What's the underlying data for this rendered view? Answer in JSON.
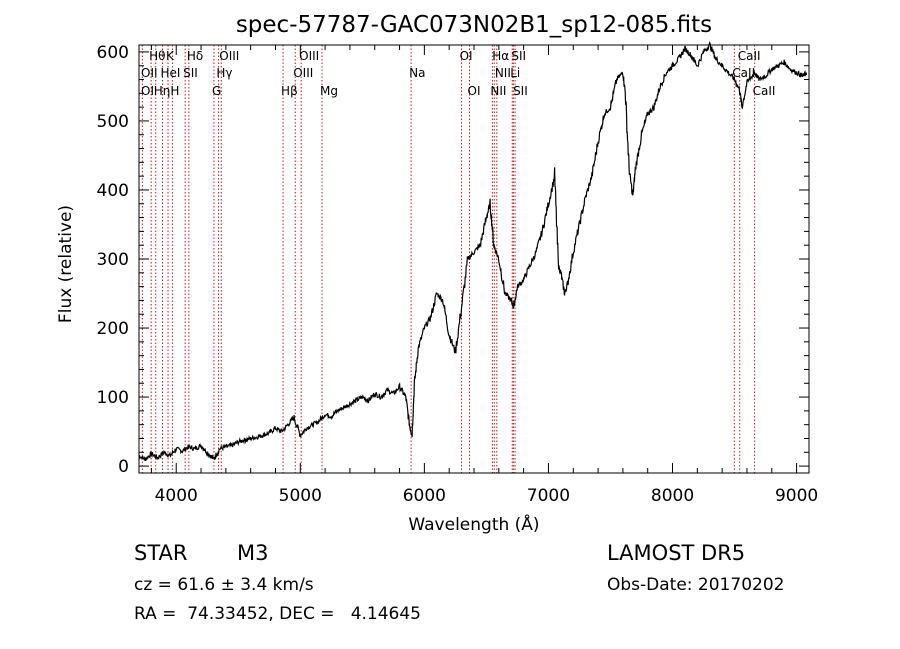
{
  "chart_data": {
    "type": "line",
    "title": "spec-57787-GAC073N02B1_sp12-085.fits",
    "xlabel": "Wavelength (Å)",
    "ylabel": "Flux (relative)",
    "xlim": [
      3700,
      9100
    ],
    "ylim": [
      -10,
      610
    ],
    "xticks": [
      4000,
      5000,
      6000,
      7000,
      8000,
      9000
    ],
    "yticks": [
      0,
      100,
      200,
      300,
      400,
      500,
      600
    ],
    "grid": false,
    "series": [
      {
        "x": [
          3700,
          3750,
          3800,
          3850,
          3900,
          3950,
          4000,
          4050,
          4100,
          4150,
          4200,
          4250,
          4300,
          4350,
          4400,
          4450,
          4500,
          4550,
          4600,
          4650,
          4700,
          4750,
          4800,
          4850,
          4900,
          4950,
          5000,
          5050,
          5100,
          5150,
          5200,
          5250,
          5300,
          5350,
          5400,
          5450,
          5500,
          5550,
          5600,
          5650,
          5700,
          5750,
          5800,
          5850,
          5880,
          5900,
          5920,
          5950,
          6000,
          6050,
          6100,
          6150,
          6200,
          6250,
          6300,
          6350,
          6400,
          6450,
          6500,
          6530,
          6560,
          6600,
          6650,
          6700,
          6720,
          6750,
          6800,
          6850,
          6900,
          6950,
          7000,
          7050,
          7080,
          7100,
          7130,
          7150,
          7200,
          7250,
          7300,
          7350,
          7400,
          7450,
          7500,
          7550,
          7600,
          7620,
          7650,
          7680,
          7700,
          7750,
          7800,
          7850,
          7900,
          7950,
          8000,
          8050,
          8100,
          8150,
          8200,
          8250,
          8300,
          8350,
          8400,
          8450,
          8500,
          8540,
          8560,
          8600,
          8660,
          8700,
          8750,
          8800,
          8850,
          8900,
          8950,
          9000,
          9050,
          9080
        ],
        "y": [
          15,
          10,
          18,
          12,
          20,
          15,
          25,
          22,
          28,
          25,
          30,
          20,
          10,
          25,
          28,
          30,
          35,
          38,
          40,
          42,
          45,
          48,
          55,
          50,
          60,
          70,
          45,
          55,
          60,
          65,
          75,
          72,
          80,
          85,
          90,
          95,
          100,
          95,
          105,
          100,
          110,
          105,
          115,
          100,
          60,
          45,
          120,
          170,
          200,
          215,
          250,
          240,
          190,
          165,
          230,
          300,
          310,
          320,
          360,
          380,
          320,
          300,
          250,
          240,
          230,
          260,
          270,
          290,
          310,
          340,
          380,
          420,
          290,
          280,
          250,
          260,
          310,
          350,
          390,
          420,
          470,
          510,
          520,
          560,
          570,
          540,
          430,
          390,
          430,
          480,
          510,
          520,
          550,
          570,
          580,
          590,
          605,
          595,
          580,
          600,
          610,
          590,
          580,
          570,
          560,
          545,
          520,
          555,
          570,
          560,
          565,
          575,
          580,
          585,
          575,
          570,
          565,
          570
        ]
      }
    ],
    "annotations": [
      {
        "label": "Hθ",
        "x": 3798,
        "row": 1
      },
      {
        "label": "K",
        "x": 3934,
        "row": 1
      },
      {
        "label": "Hδ",
        "x": 4102,
        "row": 1
      },
      {
        "label": "OIII",
        "x": 4363,
        "row": 1
      },
      {
        "label": "OIII",
        "x": 5007,
        "row": 1
      },
      {
        "label": "OI",
        "x": 6300,
        "row": 1
      },
      {
        "label": "Hα",
        "x": 6563,
        "row": 1
      },
      {
        "label": "SII",
        "x": 6717,
        "row": 1
      },
      {
        "label": "CaII",
        "x": 8542,
        "row": 1
      },
      {
        "label": "OII",
        "x": 3727,
        "row": 2
      },
      {
        "label": "HeI",
        "x": 3889,
        "row": 2
      },
      {
        "label": "SII",
        "x": 4072,
        "row": 2
      },
      {
        "label": "Hγ",
        "x": 4340,
        "row": 2
      },
      {
        "label": "OIII",
        "x": 4959,
        "row": 2
      },
      {
        "label": "NII",
        "x": 6584,
        "row": 2
      },
      {
        "label": "Li",
        "x": 6708,
        "row": 2
      },
      {
        "label": "CaII",
        "x": 8498,
        "row": 2
      },
      {
        "label": "OI",
        "x": 3727,
        "row": 3
      },
      {
        "label": "Hη",
        "x": 3835,
        "row": 3
      },
      {
        "label": "H",
        "x": 3969,
        "row": 3
      },
      {
        "label": "G",
        "x": 4304,
        "row": 3
      },
      {
        "label": "Hβ",
        "x": 4861,
        "row": 3
      },
      {
        "label": "Mg",
        "x": 5175,
        "row": 3
      },
      {
        "label": "Na",
        "x": 5893,
        "row": 2
      },
      {
        "label": "OI",
        "x": 6364,
        "row": 3
      },
      {
        "label": "NII",
        "x": 6548,
        "row": 3
      },
      {
        "label": "SII",
        "x": 6731,
        "row": 3
      },
      {
        "label": "CaII",
        "x": 8662,
        "row": 3
      }
    ],
    "line_positions": [
      3727,
      3798,
      3835,
      3889,
      3934,
      3969,
      4072,
      4102,
      4304,
      4340,
      4363,
      4861,
      4959,
      5007,
      5175,
      5893,
      6300,
      6364,
      6548,
      6563,
      6584,
      6708,
      6717,
      6731,
      8498,
      8542,
      8662
    ]
  },
  "info": {
    "object_class": "STAR",
    "subclass": "M3",
    "redshift": "cz = 61.6 ± 3.4 km/s",
    "coords": "RA =  74.33452, DEC =   4.14645",
    "survey": "LAMOST DR5",
    "obs_date": "Obs-Date: 20170202"
  }
}
